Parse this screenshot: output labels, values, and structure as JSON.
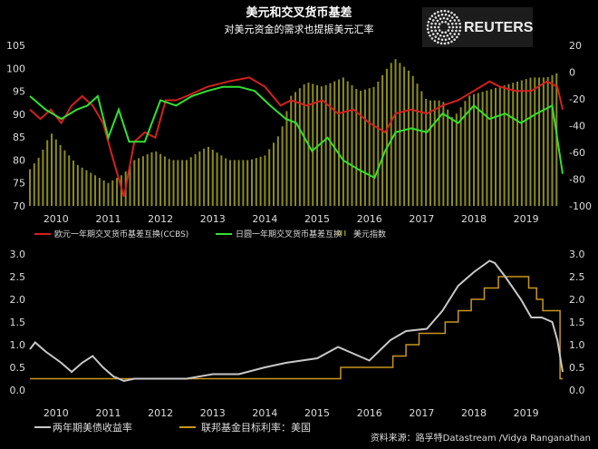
{
  "title": "美元和交叉货币基差",
  "subtitle": "对美元资金的需求也提振美元汇率",
  "logo": "REUTERS",
  "source": "资料来源：路孚特Datastream /Vidya Ranganathan",
  "colors": {
    "red": "#d42020",
    "green": "#33e033",
    "bars": "#8c8c1e",
    "white": "#c8c8c8",
    "fed": "#c8961e"
  },
  "chart_data": [
    {
      "type": "line+bar",
      "title": "美元和交叉货币基差",
      "x_ticks": [
        "2010",
        "2011",
        "2012",
        "2013",
        "2014",
        "2015",
        "2016",
        "2017",
        "2018",
        "2019"
      ],
      "xlim": [
        2010.0,
        2020.2
      ],
      "left_axis": {
        "ylim": [
          70,
          105
        ],
        "ticks": [
          "105",
          "100",
          "95",
          "90",
          "85",
          "80",
          "75",
          "70"
        ]
      },
      "right_axis": {
        "ylim": [
          -100,
          20
        ],
        "ticks": [
          "20",
          "0",
          "-20",
          "-40",
          "-60",
          "-80",
          "-100"
        ]
      },
      "legend": [
        "欧元一年期交叉货币基差互换(CCBS)",
        "日圆一年期交叉货币基差互换",
        "美元指数"
      ],
      "series": [
        {
          "name": "欧元一年期交叉货币基差互换(CCBS)",
          "axis": "right",
          "x": [
            2010.0,
            2010.2,
            2010.4,
            2010.6,
            2010.8,
            2011.0,
            2011.2,
            2011.4,
            2011.6,
            2011.8,
            2012.0,
            2012.2,
            2012.4,
            2012.6,
            2012.8,
            2013.0,
            2013.4,
            2013.8,
            2014.2,
            2014.5,
            2014.8,
            2015.0,
            2015.3,
            2015.6,
            2015.9,
            2016.2,
            2016.5,
            2016.8,
            2017.0,
            2017.3,
            2017.6,
            2017.9,
            2018.2,
            2018.5,
            2018.8,
            2019.0,
            2019.3,
            2019.6,
            2019.9,
            2020.1,
            2020.2
          ],
          "values": [
            -28,
            -35,
            -28,
            -38,
            -25,
            -18,
            -25,
            -38,
            -66,
            -93,
            -52,
            -45,
            -49,
            -21,
            -21,
            -18,
            -11,
            -7,
            -4,
            -11,
            -25,
            -21,
            -25,
            -21,
            -31,
            -28,
            -38,
            -45,
            -31,
            -28,
            -31,
            -25,
            -21,
            -14,
            -7,
            -11,
            -14,
            -14,
            -7,
            -11,
            -28
          ]
        },
        {
          "name": "日圆一年期交叉货币基差互换",
          "axis": "right",
          "x": [
            2010.0,
            2010.3,
            2010.6,
            2010.9,
            2011.1,
            2011.3,
            2011.5,
            2011.7,
            2011.9,
            2012.2,
            2012.5,
            2012.8,
            2013.1,
            2013.4,
            2013.7,
            2014.0,
            2014.3,
            2014.6,
            2014.9,
            2015.1,
            2015.4,
            2015.7,
            2016.0,
            2016.3,
            2016.6,
            2016.8,
            2017.0,
            2017.3,
            2017.6,
            2017.9,
            2018.2,
            2018.5,
            2018.8,
            2019.1,
            2019.4,
            2019.7,
            2020.0,
            2020.2
          ],
          "values": [
            -18,
            -28,
            -35,
            -28,
            -25,
            -18,
            -49,
            -28,
            -52,
            -52,
            -21,
            -25,
            -18,
            -14,
            -11,
            -11,
            -14,
            -25,
            -35,
            -38,
            -59,
            -49,
            -66,
            -73,
            -79,
            -59,
            -45,
            -42,
            -45,
            -31,
            -38,
            -25,
            -35,
            -31,
            -38,
            -31,
            -25,
            -76
          ]
        },
        {
          "name": "美元指数",
          "axis": "left",
          "kind": "bar",
          "x": [
            2010.0,
            2010.2,
            2010.4,
            2010.6,
            2010.9,
            2011.2,
            2011.5,
            2011.8,
            2012.0,
            2012.4,
            2012.7,
            2013.0,
            2013.4,
            2013.8,
            2014.2,
            2014.5,
            2014.8,
            2015.0,
            2015.3,
            2015.6,
            2016.0,
            2016.3,
            2016.6,
            2016.9,
            2017.0,
            2017.3,
            2017.6,
            2017.9,
            2018.1,
            2018.4,
            2018.7,
            2019.0,
            2019.3,
            2019.6,
            2019.9,
            2020.1
          ],
          "values": [
            78,
            81,
            86,
            83,
            79,
            77,
            75,
            77,
            80,
            82,
            80,
            80,
            83,
            80,
            80,
            81,
            86,
            94,
            97,
            96,
            98,
            95,
            96,
            101,
            102,
            99,
            93,
            93,
            89,
            94,
            95,
            96,
            97,
            98,
            98,
            99
          ]
        }
      ]
    },
    {
      "type": "line",
      "x_ticks": [
        "2010",
        "2011",
        "2012",
        "2013",
        "2014",
        "2015",
        "2016",
        "2017",
        "2018",
        "2019"
      ],
      "xlim": [
        2010.0,
        2020.2
      ],
      "ylim": [
        0,
        3
      ],
      "y_ticks": [
        "3.0",
        "2.5",
        "2.0",
        "1.5",
        "1.0",
        "0.5",
        "0.0"
      ],
      "legend": [
        "两年期美债收益率",
        "联邦基金目标利率：美国"
      ],
      "series": [
        {
          "name": "两年期美债收益率",
          "x": [
            2010.0,
            2010.1,
            2010.3,
            2010.6,
            2010.8,
            2011.0,
            2011.2,
            2011.4,
            2011.6,
            2011.8,
            2012.0,
            2012.5,
            2013.0,
            2013.5,
            2014.0,
            2014.5,
            2014.9,
            2015.2,
            2015.5,
            2015.9,
            2016.2,
            2016.5,
            2016.9,
            2017.2,
            2017.6,
            2017.9,
            2018.2,
            2018.5,
            2018.8,
            2018.9,
            2019.1,
            2019.4,
            2019.6,
            2019.8,
            2020.0,
            2020.1,
            2020.2
          ],
          "values": [
            0.9,
            1.05,
            0.85,
            0.6,
            0.4,
            0.6,
            0.75,
            0.5,
            0.3,
            0.2,
            0.25,
            0.25,
            0.25,
            0.35,
            0.35,
            0.5,
            0.6,
            0.65,
            0.7,
            0.95,
            0.8,
            0.65,
            1.1,
            1.3,
            1.35,
            1.75,
            2.3,
            2.6,
            2.85,
            2.8,
            2.5,
            2.0,
            1.6,
            1.6,
            1.5,
            1.1,
            0.4
          ]
        },
        {
          "name": "联邦基金目标利率：美国",
          "step": true,
          "x": [
            2010.0,
            2015.95,
            2016.95,
            2017.2,
            2017.45,
            2017.95,
            2018.2,
            2018.45,
            2018.7,
            2018.97,
            2019.55,
            2019.7,
            2019.82,
            2020.15,
            2020.2
          ],
          "values": [
            0.25,
            0.5,
            0.75,
            1.0,
            1.25,
            1.5,
            1.75,
            2.0,
            2.25,
            2.5,
            2.25,
            2.0,
            1.75,
            0.25,
            0.25
          ]
        }
      ]
    }
  ]
}
